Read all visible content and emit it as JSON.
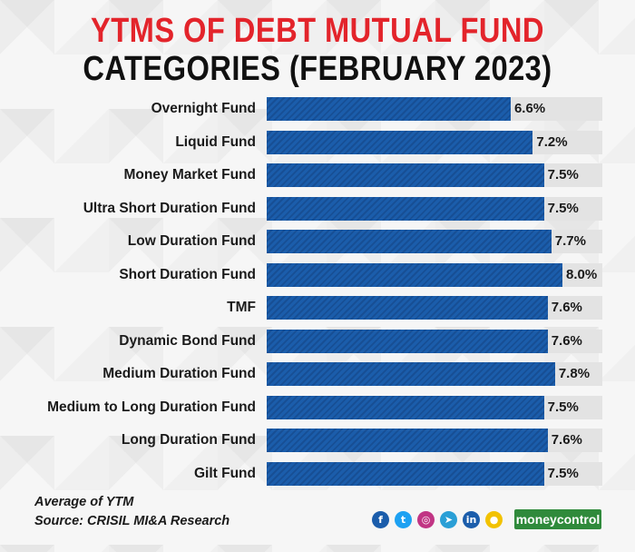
{
  "title_line1": "YTMS OF DEBT MUTUAL FUND",
  "title_line2": "CATEGORIES (FEBRUARY 2023)",
  "chart_data": {
    "type": "bar",
    "orientation": "horizontal",
    "categories": [
      "Overnight Fund",
      "Liquid Fund",
      "Money Market Fund",
      "Ultra Short Duration Fund",
      "Low Duration Fund",
      "Short Duration Fund",
      "TMF",
      "Dynamic Bond Fund",
      "Medium Duration Fund",
      "Medium to Long Duration Fund",
      "Long Duration Fund",
      "Gilt Fund"
    ],
    "values": [
      6.6,
      7.2,
      7.5,
      7.5,
      7.7,
      8.0,
      7.6,
      7.6,
      7.8,
      7.5,
      7.6,
      7.5
    ],
    "value_labels": [
      "6.6%",
      "7.2%",
      "7.5%",
      "7.5%",
      "7.7%",
      "8.0%",
      "7.6%",
      "7.6%",
      "7.8%",
      "7.5%",
      "7.6%",
      "7.5%"
    ],
    "bar_color": "#1b5dab",
    "track_color": "#e3e3e3"
  },
  "footer": {
    "note": "Average of YTM",
    "source": "Source: CRISIL MI&A Research"
  },
  "social_icons": [
    {
      "name": "facebook-icon",
      "glyph": "f",
      "color": "#1b5dab"
    },
    {
      "name": "twitter-icon",
      "glyph": "t",
      "color": "#1da1f2"
    },
    {
      "name": "instagram-icon",
      "glyph": "◎",
      "color": "#c13584"
    },
    {
      "name": "telegram-icon",
      "glyph": "➤",
      "color": "#2a9fd6"
    },
    {
      "name": "linkedin-icon",
      "glyph": "in",
      "color": "#1b5dab"
    },
    {
      "name": "koo-icon",
      "glyph": "●",
      "color": "#f2c200"
    }
  ],
  "brand": "moneycontrol"
}
